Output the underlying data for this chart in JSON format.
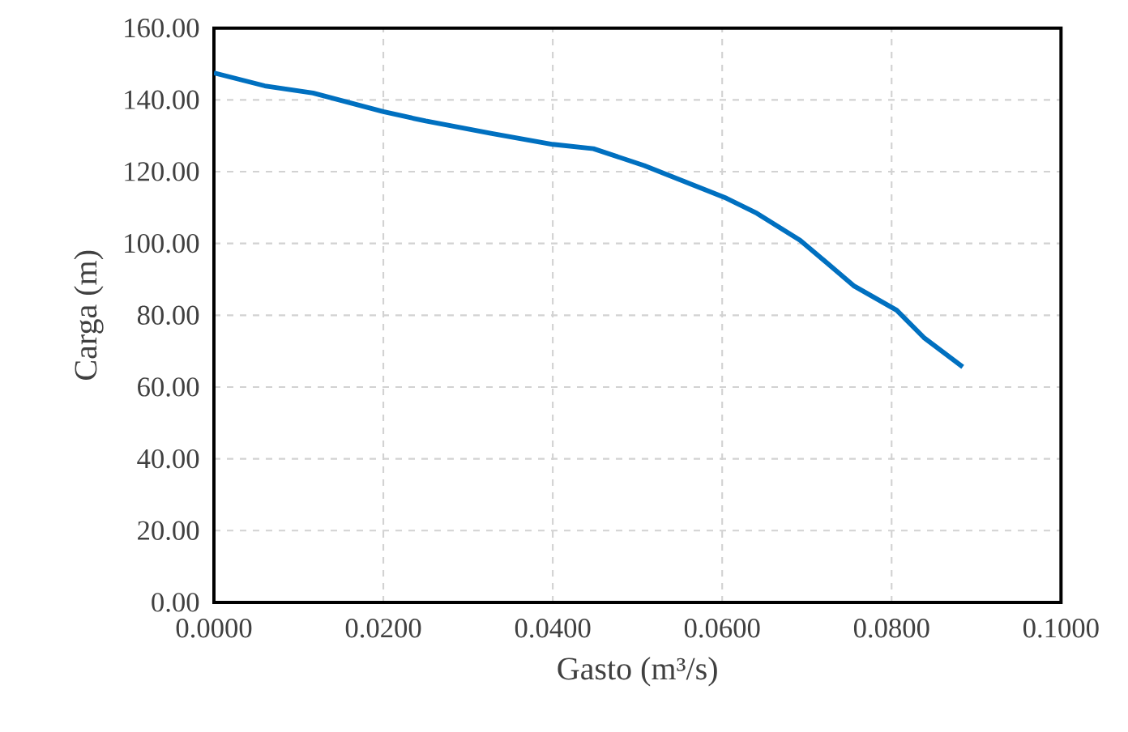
{
  "chart_data": {
    "type": "line",
    "xlabel": "Gasto (m³/s)",
    "ylabel": "Carga (m)",
    "x": [
      0,
      0.006,
      0.0117,
      0.02,
      0.025,
      0.0328,
      0.04,
      0.0448,
      0.0508,
      0.0605,
      0.0641,
      0.0692,
      0.0756,
      0.0806,
      0.0838,
      0.0884
    ],
    "series": [
      {
        "color": "#0070c0",
        "values": [
          147.5,
          143.9,
          141.9,
          136.7,
          134.1,
          130.6,
          127.6,
          126.4,
          121.7,
          112.6,
          108.4,
          100.9,
          88.1,
          81.4,
          73.8,
          65.6
        ]
      }
    ],
    "xlim": [
      0,
      0.1
    ],
    "ylim": [
      0,
      160
    ],
    "xticks": [
      {
        "value": 0,
        "label": "0.0000"
      },
      {
        "value": 0.02,
        "label": "0.0200"
      },
      {
        "value": 0.04,
        "label": "0.0400"
      },
      {
        "value": 0.06,
        "label": "0.0600"
      },
      {
        "value": 0.08,
        "label": "0.0800"
      },
      {
        "value": 0.1,
        "label": "0.1000"
      }
    ],
    "yticks": [
      {
        "value": 0,
        "label": "0.00"
      },
      {
        "value": 20,
        "label": "20.00"
      },
      {
        "value": 40,
        "label": "40.00"
      },
      {
        "value": 60,
        "label": "60.00"
      },
      {
        "value": 80,
        "label": "80.00"
      },
      {
        "value": 100,
        "label": "100.00"
      },
      {
        "value": 120,
        "label": "120.00"
      },
      {
        "value": 140,
        "label": "140.00"
      },
      {
        "value": 160,
        "label": "160.00"
      }
    ],
    "grid": true,
    "marker": "none",
    "line_style": "solid"
  }
}
